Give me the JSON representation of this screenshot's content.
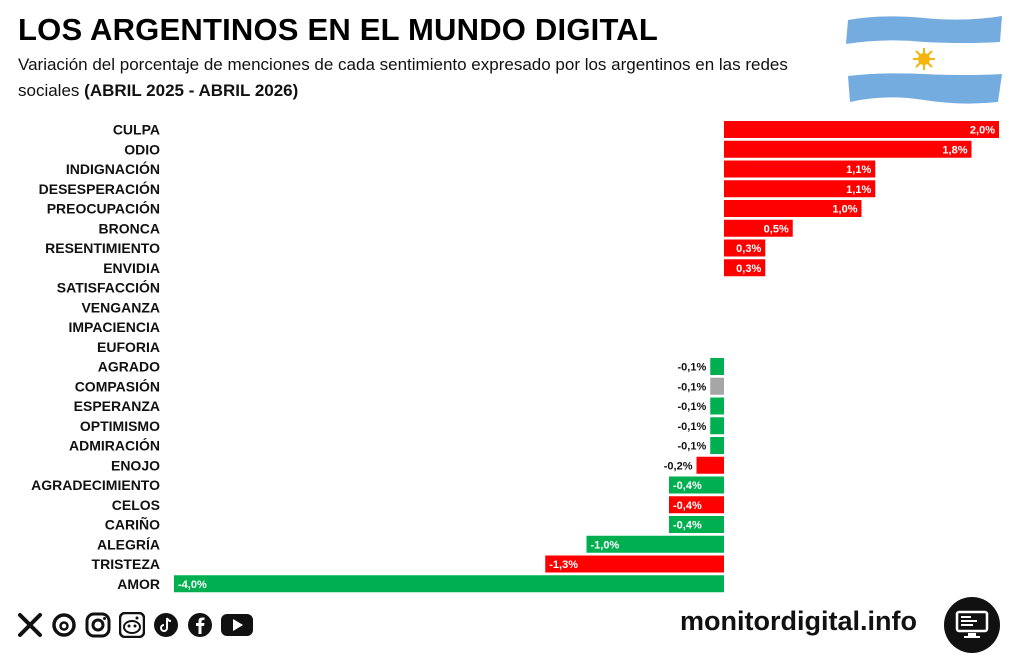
{
  "header": {
    "title": "LOS ARGENTINOS EN EL MUNDO DIGITAL",
    "subtitle": "Variación del porcentaje de menciones de cada sentimiento expresado por los argentinos en las redes sociales",
    "subtitle_bold": "(ABRIL 2025 - ABRIL 2026)"
  },
  "colors": {
    "negative_sentiment": "#ff0000",
    "positive_sentiment": "#00b050",
    "neutral_sentiment": "#a6a6a6",
    "flag_blue": "#74acdf",
    "flag_sun": "#f6b40e"
  },
  "chart_data": {
    "type": "bar",
    "orientation": "horizontal",
    "categories": [
      "CULPA",
      "ODIO",
      "INDIGNACIÓN",
      "DESESPERACIÓN",
      "PREOCUPACIÓN",
      "BRONCA",
      "RESENTIMIENTO",
      "ENVIDIA",
      "SATISFACCIÓN",
      "VENGANZA",
      "IMPACIENCIA",
      "EUFORIA",
      "AGRADO",
      "COMPASIÓN",
      "ESPERANZA",
      "OPTIMISMO",
      "ADMIRACIÓN",
      "ENOJO",
      "AGRADECIMIENTO",
      "CELOS",
      "CARIÑO",
      "ALEGRÍA",
      "TRISTEZA",
      "AMOR"
    ],
    "values": [
      2.0,
      1.8,
      1.1,
      1.1,
      1.0,
      0.5,
      0.3,
      0.3,
      0,
      0,
      0,
      0,
      -0.1,
      -0.1,
      -0.1,
      -0.1,
      -0.1,
      -0.2,
      -0.4,
      -0.4,
      -0.4,
      -1.0,
      -1.3,
      -4.0
    ],
    "labels": [
      "2,0%",
      "1,8%",
      "1,1%",
      "1,1%",
      "1,0%",
      "0,5%",
      "0,3%",
      "0,3%",
      "",
      "",
      "",
      "",
      "-0,1%",
      "-0,1%",
      "-0,1%",
      "-0,1%",
      "-0,1%",
      "-0,2%",
      "-0,4%",
      "-0,4%",
      "-0,4%",
      "-1,0%",
      "-1,3%",
      "-4,0%"
    ],
    "bar_colors": [
      "#ff0000",
      "#ff0000",
      "#ff0000",
      "#ff0000",
      "#ff0000",
      "#ff0000",
      "#ff0000",
      "#ff0000",
      "#00b050",
      "#ff0000",
      "#ff0000",
      "#00b050",
      "#00b050",
      "#a6a6a6",
      "#00b050",
      "#00b050",
      "#00b050",
      "#ff0000",
      "#00b050",
      "#ff0000",
      "#00b050",
      "#00b050",
      "#ff0000",
      "#00b050"
    ],
    "xlim": [
      -4.0,
      2.0
    ],
    "grid": false,
    "legend": "none"
  },
  "footer": {
    "icons": [
      "x-icon",
      "threads-icon",
      "instagram-icon",
      "reddit-icon",
      "tiktok-icon",
      "facebook-icon",
      "youtube-icon"
    ],
    "site": "monitordigital.info",
    "logo_icon": "monitor-icon"
  }
}
